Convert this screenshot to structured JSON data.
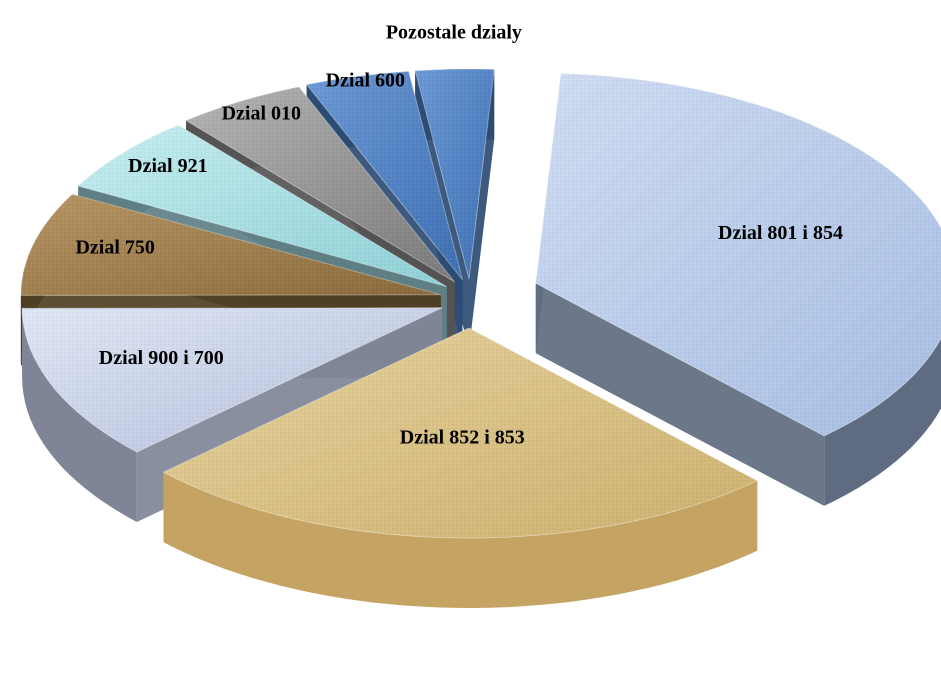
{
  "chart_data": {
    "type": "pie",
    "title": "",
    "labels": [
      "Dzial 801 i 854",
      "Dzial 852 i 853",
      "Dzial 900 i 700",
      "Dzial 750",
      "Dzial 921",
      "Dzial 010",
      "Dzial 600",
      "Pozostale dzialy"
    ],
    "values": [
      37.0,
      25.0,
      12.0,
      8.0,
      6.0,
      5.0,
      4.0,
      3.0
    ],
    "unit": "%",
    "style": "3d-exploded",
    "colors": [
      "#b6cbea",
      "#d9bf84",
      "#c6cde6",
      "#9a7a4a",
      "#a9dfe3",
      "#8f8f8f",
      "#4a7ec4",
      "#4a7ec4"
    ],
    "side_colors": [
      "#5f6b80",
      "#c5a463",
      "#7f8596",
      "#4f3f25",
      "#5f7f85",
      "#545454",
      "#2c4c73",
      "#2c4c73"
    ]
  }
}
